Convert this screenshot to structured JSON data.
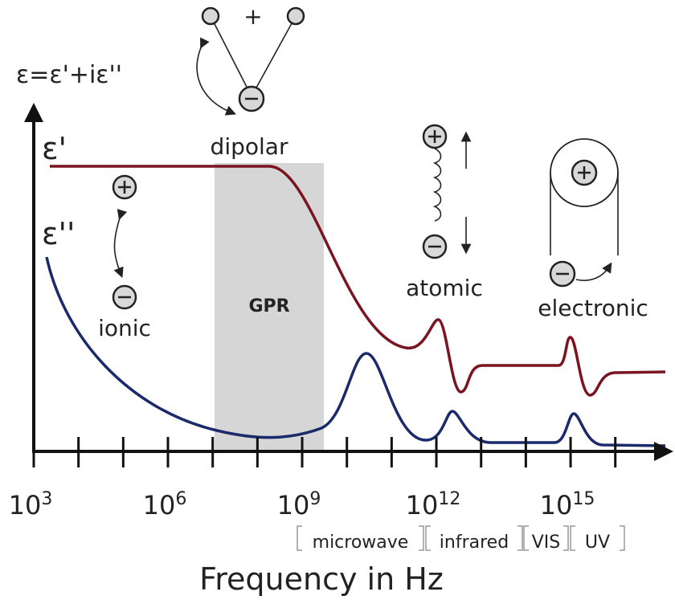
{
  "axis_label_y": "ε=ε'+iε''",
  "axis_label_x": "Frequency in Hz",
  "curves": {
    "real": "ε'",
    "imaginary": "ε''"
  },
  "band": "GPR",
  "mechanisms": {
    "ionic": "ionic",
    "dipolar": "dipolar",
    "dipolar_sign": "+",
    "atomic": "atomic",
    "electronic": "electronic"
  },
  "x_ticks": [
    {
      "base": "10",
      "exponent": "3"
    },
    {
      "base": "10",
      "exponent": "6"
    },
    {
      "base": "10",
      "exponent": "9"
    },
    {
      "base": "10",
      "exponent": "12"
    },
    {
      "base": "10",
      "exponent": "15"
    }
  ],
  "regions": [
    "microwave",
    "infrared",
    "VIS",
    "UV"
  ]
}
